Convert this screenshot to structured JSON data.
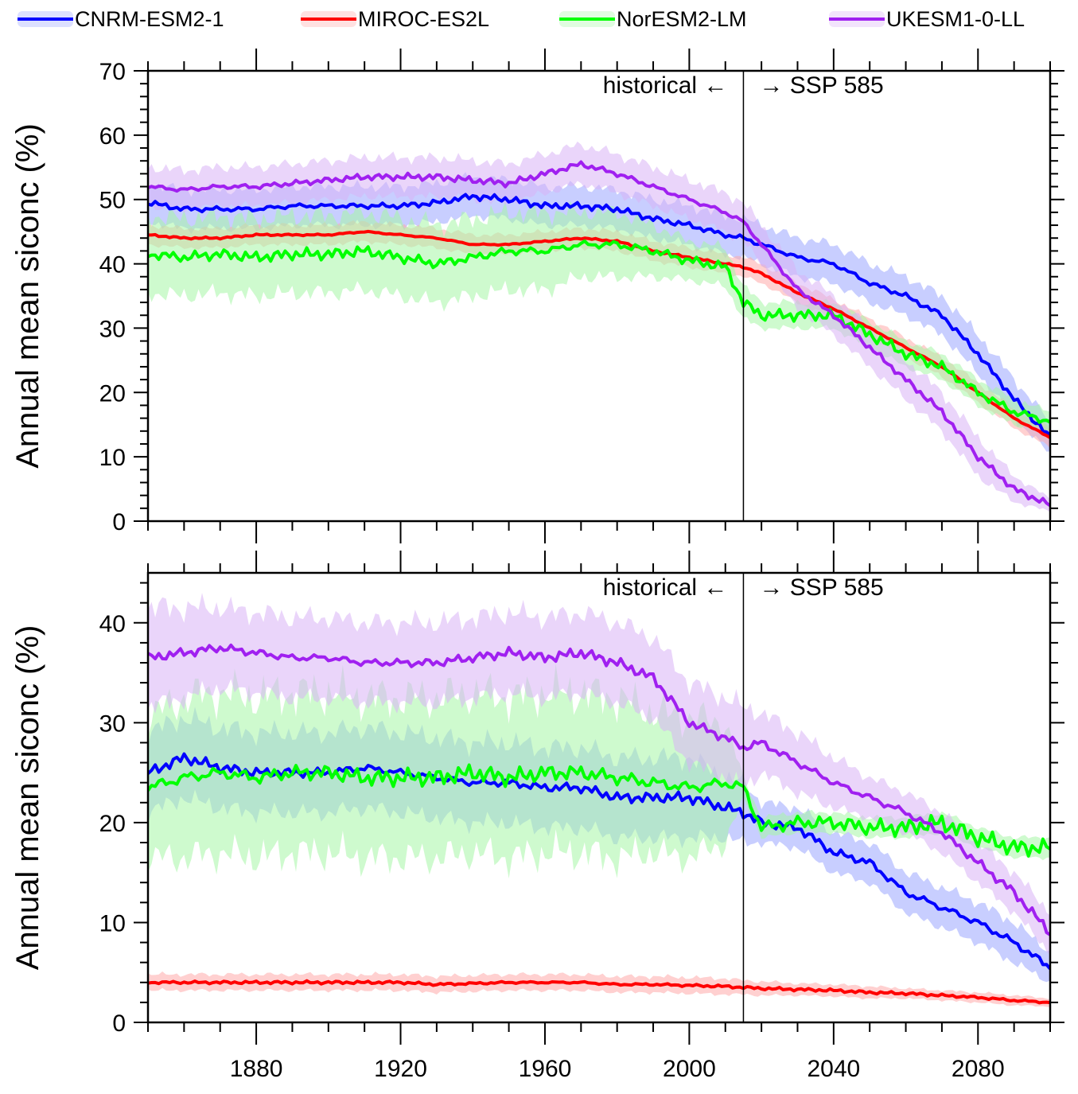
{
  "legend": {
    "items": [
      {
        "label": "CNRM-ESM2-1",
        "color": "#0000ff",
        "band": "#9aa6ff"
      },
      {
        "label": "MIROC-ES2L",
        "color": "#ff0000",
        "band": "#ffaaaa"
      },
      {
        "label": "NorESM2-LM",
        "color": "#00ff00",
        "band": "#a6f5a6"
      },
      {
        "label": "UKESM1-0-LL",
        "color": "#a020f0",
        "band": "#d9b3f5"
      }
    ]
  },
  "chart_data": [
    {
      "type": "line",
      "ylabel": "Annual mean siconc (%)",
      "xlim": [
        1850,
        2100
      ],
      "ylim": [
        0,
        70
      ],
      "yticks": [
        0,
        10,
        20,
        30,
        40,
        50,
        60,
        70
      ],
      "divider_year": 2015,
      "annotation_left": "historical ←",
      "annotation_right": "→ SSP 585",
      "series": [
        {
          "name": "CNRM-ESM2-1",
          "x": [
            1850,
            1860,
            1870,
            1880,
            1890,
            1900,
            1910,
            1920,
            1930,
            1940,
            1950,
            1960,
            1970,
            1980,
            1990,
            2000,
            2010,
            2015,
            2020,
            2030,
            2040,
            2050,
            2060,
            2070,
            2080,
            2090,
            2100
          ],
          "values": [
            49.5,
            48.5,
            48.5,
            48.5,
            49,
            49,
            49,
            49,
            49.5,
            50.5,
            50,
            49,
            49,
            48.5,
            47,
            46,
            44.5,
            44,
            43,
            41,
            40,
            37,
            35,
            32,
            26,
            19,
            13
          ],
          "spread": [
            3,
            3,
            3,
            3,
            3,
            3,
            3,
            3,
            3,
            3,
            3,
            3,
            3,
            3,
            3,
            3,
            3,
            3,
            3,
            3,
            3,
            3,
            3,
            3,
            3,
            3,
            2.5
          ]
        },
        {
          "name": "MIROC-ES2L",
          "x": [
            1850,
            1860,
            1870,
            1880,
            1890,
            1900,
            1910,
            1920,
            1930,
            1940,
            1950,
            1960,
            1970,
            1980,
            1990,
            2000,
            2010,
            2015,
            2020,
            2030,
            2040,
            2050,
            2060,
            2070,
            2080,
            2090,
            2100
          ],
          "values": [
            44.5,
            44,
            44,
            44.5,
            44.5,
            44.5,
            45,
            44.5,
            44,
            43,
            43,
            43.5,
            44,
            43.5,
            42,
            41,
            40,
            39.5,
            38.5,
            35.5,
            33,
            30,
            27,
            24,
            20,
            16,
            13
          ],
          "spread": [
            1.5,
            1.5,
            1.5,
            1.5,
            1.5,
            1.5,
            1.5,
            1.5,
            1.5,
            1.5,
            1.5,
            1.5,
            1.5,
            1.5,
            1.5,
            1.5,
            1.5,
            1.5,
            1.5,
            1.5,
            1.5,
            1.5,
            1.5,
            1.5,
            1.5,
            1.5,
            1.5
          ]
        },
        {
          "name": "NorESM2-LM",
          "x": [
            1850,
            1860,
            1870,
            1880,
            1890,
            1900,
            1910,
            1920,
            1930,
            1940,
            1950,
            1960,
            1970,
            1980,
            1990,
            2000,
            2010,
            2015,
            2020,
            2030,
            2040,
            2050,
            2060,
            2070,
            2080,
            2090,
            2100
          ],
          "values": [
            41.5,
            41,
            41.5,
            41,
            41.5,
            41.5,
            42,
            41,
            40,
            41,
            42,
            42,
            43,
            43,
            42,
            40.5,
            39.5,
            34,
            32,
            32,
            32,
            29,
            26,
            24,
            20,
            17,
            15.5
          ],
          "spread": [
            6,
            6,
            6,
            6,
            6,
            6,
            6,
            6,
            6,
            6,
            6,
            6,
            5,
            5,
            4,
            3,
            3,
            2.5,
            2,
            2,
            2,
            2,
            2,
            2,
            2,
            2,
            1.5
          ]
        },
        {
          "name": "UKESM1-0-LL",
          "x": [
            1850,
            1860,
            1870,
            1880,
            1890,
            1900,
            1910,
            1920,
            1930,
            1940,
            1950,
            1960,
            1970,
            1980,
            1990,
            2000,
            2010,
            2015,
            2020,
            2030,
            2040,
            2050,
            2060,
            2070,
            2080,
            2090,
            2100
          ],
          "values": [
            52,
            51.5,
            52,
            52,
            52.5,
            53,
            53.5,
            53.5,
            53.5,
            53,
            52.5,
            54,
            55.5,
            54,
            52,
            50,
            48,
            46.5,
            43,
            36,
            32,
            27,
            22,
            17,
            10,
            5,
            2.5
          ],
          "spread": [
            3,
            3,
            3,
            3,
            3,
            3,
            3,
            3,
            3,
            3,
            3,
            3,
            3,
            3,
            3,
            3,
            3,
            3,
            3,
            3,
            3,
            3,
            3,
            3,
            3,
            2,
            1
          ]
        }
      ]
    },
    {
      "type": "line",
      "ylabel": "Annual mean siconc (%)",
      "xlabel": "",
      "xlim": [
        1850,
        2100
      ],
      "ylim": [
        0,
        45
      ],
      "yticks": [
        0,
        10,
        20,
        30,
        40
      ],
      "xticks": [
        1880,
        1920,
        1960,
        2000,
        2040,
        2080
      ],
      "divider_year": 2015,
      "annotation_left": "historical ←",
      "annotation_right": "→ SSP 585",
      "series": [
        {
          "name": "CNRM-ESM2-1",
          "x": [
            1850,
            1860,
            1870,
            1880,
            1890,
            1900,
            1910,
            1920,
            1930,
            1940,
            1950,
            1960,
            1970,
            1980,
            1990,
            2000,
            2010,
            2015,
            2020,
            2030,
            2040,
            2050,
            2060,
            2070,
            2080,
            2090,
            2100
          ],
          "values": [
            25,
            26.5,
            25.5,
            25,
            25,
            25,
            25.5,
            25,
            24.5,
            24,
            24,
            23.5,
            23.5,
            22.5,
            22.5,
            22.5,
            21.5,
            21,
            20,
            19.5,
            17,
            16,
            13,
            11.5,
            10,
            8,
            5.5
          ],
          "spread": [
            4,
            4,
            4,
            4,
            4,
            4,
            4,
            4,
            4,
            4,
            4,
            4,
            4,
            4,
            4,
            4,
            3,
            3,
            2,
            2,
            2,
            2,
            2,
            2,
            2,
            2,
            1.5
          ]
        },
        {
          "name": "MIROC-ES2L",
          "x": [
            1850,
            1860,
            1870,
            1880,
            1890,
            1900,
            1910,
            1920,
            1930,
            1940,
            1950,
            1960,
            1970,
            1980,
            1990,
            2000,
            2010,
            2015,
            2020,
            2030,
            2040,
            2050,
            2060,
            2070,
            2080,
            2090,
            2100
          ],
          "values": [
            4,
            4,
            4,
            4,
            4,
            4,
            4,
            4,
            3.8,
            3.9,
            4,
            4,
            4,
            3.8,
            3.8,
            3.7,
            3.6,
            3.5,
            3.4,
            3.3,
            3.2,
            3,
            2.9,
            2.7,
            2.5,
            2.2,
            2
          ],
          "spread": [
            0.8,
            0.8,
            0.8,
            0.8,
            0.8,
            0.8,
            0.8,
            0.8,
            0.8,
            0.8,
            0.8,
            0.8,
            0.8,
            0.8,
            0.8,
            0.8,
            0.8,
            0.7,
            0.7,
            0.6,
            0.6,
            0.6,
            0.5,
            0.5,
            0.5,
            0.5,
            0.4
          ]
        },
        {
          "name": "NorESM2-LM",
          "x": [
            1850,
            1860,
            1870,
            1880,
            1890,
            1900,
            1910,
            1920,
            1930,
            1940,
            1950,
            1960,
            1970,
            1980,
            1990,
            2000,
            2010,
            2015,
            2020,
            2030,
            2040,
            2050,
            2060,
            2070,
            2080,
            2090,
            2100
          ],
          "values": [
            23.5,
            24.5,
            25,
            24.5,
            25,
            25,
            24.5,
            24.5,
            24.5,
            25,
            24.5,
            25,
            25,
            24.5,
            24,
            23.5,
            24,
            23.5,
            19.5,
            20,
            20,
            19.5,
            19.5,
            20,
            18.5,
            17.5,
            17.5
          ],
          "spread": [
            7,
            8,
            8,
            8,
            8,
            8,
            8,
            8,
            8,
            8,
            8,
            8,
            8,
            8,
            7,
            7,
            6,
            1,
            1,
            1,
            1,
            1,
            1,
            1,
            1,
            1,
            1
          ]
        },
        {
          "name": "UKESM1-0-LL",
          "x": [
            1850,
            1860,
            1870,
            1880,
            1890,
            1900,
            1910,
            1920,
            1930,
            1940,
            1950,
            1960,
            1970,
            1980,
            1990,
            2000,
            2010,
            2015,
            2020,
            2030,
            2040,
            2050,
            2060,
            2070,
            2080,
            2090,
            2100
          ],
          "values": [
            36.5,
            37,
            37.5,
            37,
            36.5,
            36.5,
            36,
            36,
            36,
            36.5,
            37,
            36.5,
            37,
            36,
            34.5,
            30,
            28.5,
            27.5,
            28,
            26,
            24,
            22.5,
            21,
            19,
            16,
            13,
            9
          ],
          "spread": [
            5,
            4.5,
            4,
            4,
            4,
            4,
            4,
            4,
            4,
            4,
            4,
            4,
            4,
            4,
            4,
            4,
            4,
            4,
            3,
            3,
            2.5,
            2,
            2,
            2,
            2,
            2,
            2
          ]
        }
      ]
    }
  ]
}
